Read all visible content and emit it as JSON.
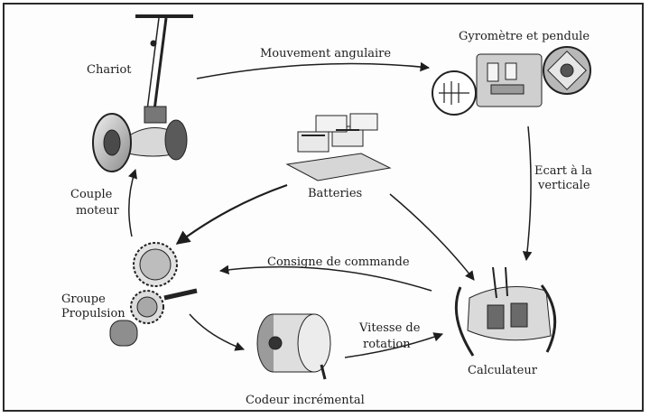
{
  "diagram": {
    "nodes": {
      "chariot": "Chariot",
      "gyro": "Gyromètre et pendule",
      "batteries": "Batteries",
      "groupe": [
        "Groupe",
        "Propulsion"
      ],
      "codeur": "Codeur incrémental",
      "calculateur": "Calculateur"
    },
    "edges": {
      "mouvement": "Mouvement angulaire",
      "ecart": [
        "Ecart à la",
        "verticale"
      ],
      "couple": [
        "Couple",
        "moteur"
      ],
      "consigne": "Consigne de commande",
      "vitesse": [
        "Vitesse de",
        "rotation"
      ]
    }
  },
  "colors": {
    "ink": "#1e1e1e",
    "frame": "#2a2a2a",
    "paper": "#fdfdfd"
  }
}
